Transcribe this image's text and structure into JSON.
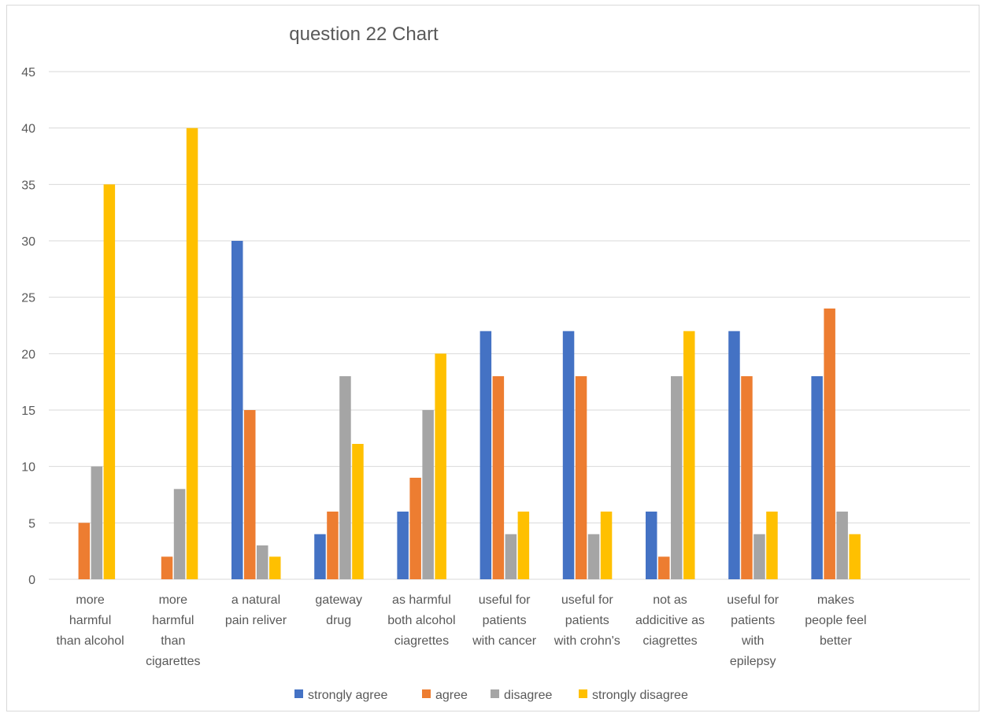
{
  "chart_data": {
    "type": "bar",
    "title": "question 22 Chart",
    "ylim": [
      0,
      45
    ],
    "yticks": [
      0,
      5,
      10,
      15,
      20,
      25,
      30,
      35,
      40,
      45
    ],
    "grid": true,
    "legend_position": "bottom",
    "categories": [
      [
        "more",
        "harmful",
        "than alcohol"
      ],
      [
        "more",
        "harmful",
        "than",
        "cigarettes"
      ],
      [
        "a natural",
        "pain reliver"
      ],
      [
        "gateway",
        "drug"
      ],
      [
        "as harmful",
        "both alcohol",
        "ciagrettes"
      ],
      [
        "useful for",
        "patients",
        "with cancer"
      ],
      [
        "useful for",
        "patients",
        "with crohn's"
      ],
      [
        "not as",
        "addicitive as",
        "ciagrettes"
      ],
      [
        "useful for",
        "patients",
        "with",
        "epilepsy"
      ],
      [
        "makes",
        "people feel",
        "better"
      ]
    ],
    "series": [
      {
        "name": "strongly agree",
        "color": "#4472C4",
        "values": [
          0,
          0,
          30,
          4,
          6,
          22,
          22,
          6,
          22,
          18
        ]
      },
      {
        "name": "agree",
        "color": "#ED7D31",
        "values": [
          5,
          2,
          15,
          6,
          9,
          18,
          18,
          2,
          18,
          24
        ]
      },
      {
        "name": "disagree",
        "color": "#A5A5A5",
        "values": [
          10,
          8,
          3,
          18,
          15,
          4,
          4,
          18,
          4,
          6
        ]
      },
      {
        "name": "strongly disagree",
        "color": "#FFC000",
        "values": [
          35,
          40,
          2,
          12,
          20,
          6,
          6,
          22,
          6,
          4
        ]
      }
    ]
  }
}
